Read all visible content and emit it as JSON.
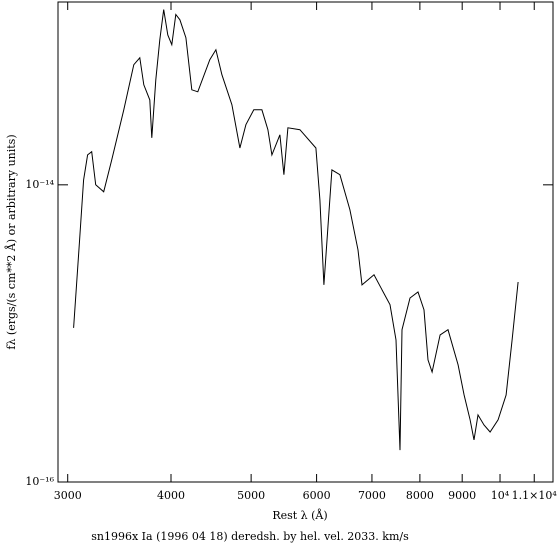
{
  "chart_data": {
    "type": "line",
    "title": "sn1996x Ia (1996 04 18) deredsh. by hel. vel.  2033. km/s",
    "x_label": "Rest λ (Å)",
    "y_label": "fλ (ergs/(s cm**2 Å) or arbitrary units)",
    "log_x": true,
    "log_y": true,
    "xlim": [
      2920,
      11590
    ],
    "ylim": [
      1e-16,
      1.7e-13
    ],
    "xticks": [
      3000,
      4000,
      5000,
      6000,
      7000,
      8000,
      9000,
      {
        "value": 10000,
        "label": "10⁴"
      },
      {
        "value": 11000,
        "label": "1.1×10⁴"
      }
    ],
    "yticks": [
      {
        "value": 1e-14,
        "label": "10⁻¹⁴"
      },
      {
        "value": 1e-16,
        "label": "10⁻¹⁶"
      }
    ],
    "series": [
      {
        "color": "#000000",
        "x": [
          3050,
          3101,
          3136,
          3171,
          3207,
          3243,
          3316,
          3391,
          3507,
          3606,
          3667,
          3708,
          3771,
          3792,
          3834,
          3877,
          3920,
          3964,
          4009,
          4054,
          4100,
          4169,
          4239,
          4310,
          4457,
          4533,
          4609,
          4739,
          4846,
          4928,
          5038,
          5152,
          5239,
          5298,
          5417,
          5478,
          5539,
          5728,
          5988,
          6056,
          6124,
          6262,
          6403,
          6584,
          6733,
          6808,
          7040,
          7360,
          7484,
          7568,
          7612,
          7782,
          7958,
          8093,
          8183,
          8276,
          8463,
          8652,
          8898,
          9047,
          9200,
          9302,
          9406,
          9565,
          9727,
          9947,
          10172,
          10342,
          10517
        ],
        "values": [
          1.09e-15,
          4.26e-15,
          1.08e-14,
          1.59e-14,
          1.67e-14,
          1e-14,
          8.97e-15,
          1.47e-14,
          3.2e-14,
          6.43e-14,
          7.16e-14,
          4.71e-14,
          3.73e-14,
          2.07e-14,
          5.09e-14,
          9.47e-14,
          1.51e-13,
          1.02e-13,
          8.77e-14,
          1.4e-13,
          1.29e-13,
          9.77e-14,
          4.36e-14,
          4.23e-14,
          6.95e-14,
          8.11e-14,
          5.51e-14,
          3.46e-14,
          1.77e-14,
          2.54e-14,
          3.2e-14,
          3.2e-14,
          2.35e-14,
          1.59e-14,
          2.17e-14,
          1.17e-14,
          2.42e-14,
          2.35e-14,
          1.77e-14,
          7.93e-15,
          2.12e-15,
          1.26e-14,
          1.17e-14,
          6.79e-15,
          3.65e-15,
          2.12e-15,
          2.48e-15,
          1.56e-15,
          9.04e-16,
          1.64e-16,
          1.06e-15,
          1.73e-15,
          1.9e-15,
          1.44e-15,
          6.63e-16,
          5.5e-16,
          9.77e-16,
          1.06e-15,
          6.14e-16,
          3.85e-16,
          2.62e-16,
          1.92e-16,
          2.83e-16,
          2.42e-16,
          2.17e-16,
          2.62e-16,
          3.85e-16,
          9.04e-16,
          2.22e-15
        ]
      }
    ]
  }
}
